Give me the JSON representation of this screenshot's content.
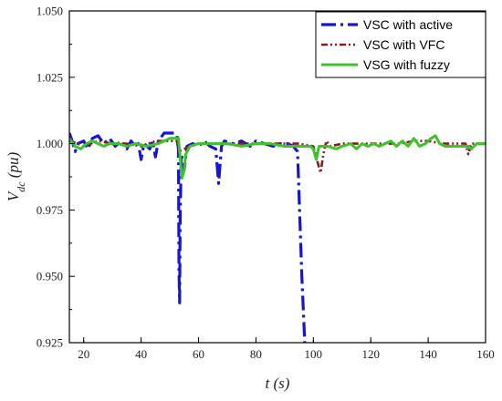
{
  "chart_data": {
    "type": "line",
    "xlabel": "t (s)",
    "ylabel": {
      "main": "V",
      "sub": "dc",
      "unit": " (pu)"
    },
    "xlim": [
      15,
      160
    ],
    "ylim": [
      0.925,
      1.05
    ],
    "xticks": [
      20,
      40,
      60,
      80,
      100,
      120,
      140,
      160
    ],
    "xtick_labels": [
      "20",
      "40",
      "60",
      "80",
      "100",
      "120",
      "140",
      "160"
    ],
    "yticks": [
      0.925,
      0.95,
      0.975,
      1.0,
      1.025,
      1.05
    ],
    "ytick_labels": [
      "0.925",
      "0.950",
      "0.975",
      "1.000",
      "1.025",
      "1.050"
    ],
    "grid": false,
    "legend_position": "top-right",
    "series": [
      {
        "name": "VSC with active",
        "color": "#1515d6",
        "dash": "dashdot",
        "points": [
          [
            15,
            1.004
          ],
          [
            16,
            1.001
          ],
          [
            17,
            0.997
          ],
          [
            18,
            1.0
          ],
          [
            20,
            1.001
          ],
          [
            21.5,
            0.998
          ],
          [
            23,
            1.002
          ],
          [
            25,
            1.003
          ],
          [
            27,
            1.0
          ],
          [
            29,
            1.002
          ],
          [
            31,
            0.999
          ],
          [
            33,
            1.001
          ],
          [
            35,
            0.998
          ],
          [
            36.5,
            1.001
          ],
          [
            38,
            0.999
          ],
          [
            39,
            1.0
          ],
          [
            40,
            0.994
          ],
          [
            41,
            1.0
          ],
          [
            43,
            0.998
          ],
          [
            44,
            1.001
          ],
          [
            45,
            0.995
          ],
          [
            46,
            1.001
          ],
          [
            48,
            1.004
          ],
          [
            50,
            1.004
          ],
          [
            51.5,
            1.004
          ],
          [
            52.5,
            1.003
          ],
          [
            53,
            0.998
          ],
          [
            53.2,
            0.952
          ],
          [
            53.4,
            0.94
          ],
          [
            53.6,
            0.972
          ],
          [
            54,
            0.996
          ],
          [
            55,
            0.99
          ],
          [
            56,
            0.999
          ],
          [
            58,
            1.0
          ],
          [
            60,
            0.999
          ],
          [
            62,
            1.001
          ],
          [
            64,
            0.999
          ],
          [
            66,
            0.998
          ],
          [
            67,
            0.985
          ],
          [
            68,
            0.999
          ],
          [
            69,
            1.001
          ],
          [
            72,
            1.0
          ],
          [
            75,
            1.001
          ],
          [
            78,
            0.999
          ],
          [
            80,
            1.001
          ],
          [
            83,
            1.0
          ],
          [
            86,
            0.999
          ],
          [
            88,
            1.0
          ],
          [
            91,
            1.0
          ],
          [
            93,
            0.999
          ],
          [
            94.5,
            0.997
          ],
          [
            95.2,
            0.975
          ],
          [
            96,
            0.95
          ],
          [
            97,
            0.925
          ]
        ]
      },
      {
        "name": "VSC with VFC",
        "color": "#8b1a1a",
        "dash": "dashdotdot",
        "points": [
          [
            15,
            1.001
          ],
          [
            18,
            1.0
          ],
          [
            20,
            0.999
          ],
          [
            25,
            1.001
          ],
          [
            30,
            1.0
          ],
          [
            35,
            1.0
          ],
          [
            40,
            0.999
          ],
          [
            45,
            1.001
          ],
          [
            50,
            1.001
          ],
          [
            52.5,
            1.001
          ],
          [
            53,
            0.997
          ],
          [
            55,
            0.998
          ],
          [
            57,
            0.999
          ],
          [
            60,
            1.0
          ],
          [
            65,
            1.0
          ],
          [
            70,
            1.0
          ],
          [
            80,
            1.0
          ],
          [
            90,
            1.0
          ],
          [
            95,
            1.0
          ],
          [
            100,
            0.999
          ],
          [
            101.5,
            0.993
          ],
          [
            102.5,
            0.989
          ],
          [
            103.5,
            0.996
          ],
          [
            104.5,
            1.001
          ],
          [
            106,
            0.999
          ],
          [
            110,
            1.0
          ],
          [
            115,
            1.0
          ],
          [
            120,
            1.0
          ],
          [
            125,
            1.0
          ],
          [
            130,
            1.0
          ],
          [
            135,
            1.001
          ],
          [
            140,
            1.001
          ],
          [
            145,
            1.0
          ],
          [
            150,
            1.0
          ],
          [
            153,
            1.0
          ],
          [
            154,
            0.996
          ],
          [
            155,
            1.0
          ],
          [
            160,
            1.0
          ]
        ]
      },
      {
        "name": "VSG with fuzzy",
        "color": "#3bc42a",
        "dash": "solid",
        "points": [
          [
            15,
            1.002
          ],
          [
            17,
            0.999
          ],
          [
            19,
            0.998
          ],
          [
            21,
            1.0
          ],
          [
            23,
            1.001
          ],
          [
            25,
            1.0
          ],
          [
            27,
            0.999
          ],
          [
            29,
            1.0
          ],
          [
            32,
            1.0
          ],
          [
            35,
            0.999
          ],
          [
            38,
            1.0
          ],
          [
            42,
            0.999
          ],
          [
            46,
            1.0
          ],
          [
            50,
            1.002
          ],
          [
            53,
            1.002
          ],
          [
            53.5,
            0.996
          ],
          [
            54.2,
            0.987
          ],
          [
            55,
            0.99
          ],
          [
            55.5,
            0.996
          ],
          [
            57,
            0.999
          ],
          [
            60,
            1.0
          ],
          [
            65,
            1.0
          ],
          [
            70,
            1.0
          ],
          [
            75,
            0.999
          ],
          [
            80,
            1.0
          ],
          [
            85,
            1.0
          ],
          [
            90,
            0.999
          ],
          [
            95,
            0.999
          ],
          [
            99,
            0.999
          ],
          [
            100,
            0.998
          ],
          [
            101,
            0.994
          ],
          [
            102,
            0.999
          ],
          [
            105,
            0.999
          ],
          [
            108,
            0.998
          ],
          [
            110,
            0.999
          ],
          [
            113,
            1.0
          ],
          [
            115,
            0.998
          ],
          [
            117,
            1.0
          ],
          [
            119,
            0.999
          ],
          [
            121,
            1.0
          ],
          [
            123,
            0.999
          ],
          [
            125,
            1.0
          ],
          [
            127,
            1.001
          ],
          [
            129,
            0.999
          ],
          [
            131,
            1.001
          ],
          [
            133,
            0.999
          ],
          [
            135,
            1.002
          ],
          [
            137,
            0.999
          ],
          [
            139,
            1.0
          ],
          [
            141,
            1.002
          ],
          [
            142.5,
            1.003
          ],
          [
            144,
            1.0
          ],
          [
            146,
            0.999
          ],
          [
            150,
            0.999
          ],
          [
            154,
            0.999
          ],
          [
            155,
            0.998
          ],
          [
            157,
            1.0
          ],
          [
            160,
            1.0
          ]
        ]
      }
    ]
  }
}
